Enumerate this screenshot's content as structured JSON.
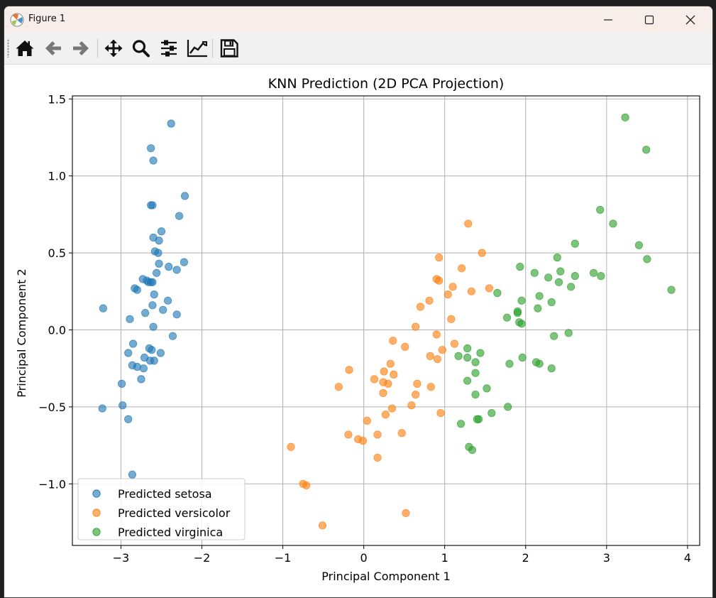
{
  "window": {
    "title": "Figure 1"
  },
  "toolbar": {
    "icons": [
      "home-icon",
      "back-arrow-icon",
      "forward-arrow-icon",
      "pan-move-icon",
      "zoom-magnifier-icon",
      "subplots-configure-icon",
      "edit-axis-lines-icon",
      "save-floppy-icon"
    ]
  },
  "colors": {
    "setosa": "#1f77b4",
    "versicolor": "#ff7f0e",
    "virginica": "#2ca02c"
  },
  "chart_data": {
    "type": "scatter",
    "title": "KNN Prediction (2D PCA Projection)",
    "xlabel": "Principal Component 1",
    "ylabel": "Principal Component 2",
    "xlim": [
      -3.6,
      4.15
    ],
    "ylim": [
      -1.4,
      1.52
    ],
    "xticks": [
      -3,
      -2,
      -1,
      0,
      1,
      2,
      3,
      4
    ],
    "xtick_labels": [
      "−3",
      "−2",
      "−1",
      "0",
      "1",
      "2",
      "3",
      "4"
    ],
    "yticks": [
      -1.0,
      -0.5,
      0.0,
      0.5,
      1.0,
      1.5
    ],
    "ytick_labels": [
      "−1.0",
      "−0.5",
      "0.0",
      "0.5",
      "1.0",
      "1.5"
    ],
    "grid": true,
    "legend_position": "lower-left",
    "series": [
      {
        "name": "Predicted setosa",
        "color": "#1f77b4",
        "points": [
          [
            -2.38,
            1.34
          ],
          [
            -2.63,
            1.18
          ],
          [
            -2.6,
            1.1
          ],
          [
            -2.21,
            0.87
          ],
          [
            -2.63,
            0.81
          ],
          [
            -2.61,
            0.81
          ],
          [
            -2.28,
            0.74
          ],
          [
            -2.5,
            0.64
          ],
          [
            -2.6,
            0.6
          ],
          [
            -2.53,
            0.58
          ],
          [
            -2.58,
            0.51
          ],
          [
            -2.54,
            0.5
          ],
          [
            -2.22,
            0.44
          ],
          [
            -2.53,
            0.43
          ],
          [
            -2.41,
            0.41
          ],
          [
            -2.31,
            0.39
          ],
          [
            -2.56,
            0.37
          ],
          [
            -2.73,
            0.33
          ],
          [
            -2.68,
            0.32
          ],
          [
            -2.63,
            0.31
          ],
          [
            -2.61,
            0.31
          ],
          [
            -2.66,
            0.31
          ],
          [
            -2.83,
            0.27
          ],
          [
            -2.8,
            0.26
          ],
          [
            -2.59,
            0.23
          ],
          [
            -2.42,
            0.19
          ],
          [
            -2.61,
            0.16
          ],
          [
            -2.48,
            0.13
          ],
          [
            -3.22,
            0.14
          ],
          [
            -2.31,
            0.1
          ],
          [
            -2.7,
            0.11
          ],
          [
            -2.89,
            0.07
          ],
          [
            -2.6,
            0.02
          ],
          [
            -2.36,
            -0.04
          ],
          [
            -2.85,
            -0.09
          ],
          [
            -2.65,
            -0.12
          ],
          [
            -2.62,
            -0.13
          ],
          [
            -2.91,
            -0.15
          ],
          [
            -2.51,
            -0.15
          ],
          [
            -2.71,
            -0.18
          ],
          [
            -2.64,
            -0.2
          ],
          [
            -2.59,
            -0.2
          ],
          [
            -2.86,
            -0.23
          ],
          [
            -2.8,
            -0.24
          ],
          [
            -2.72,
            -0.25
          ],
          [
            -2.75,
            -0.32
          ],
          [
            -2.99,
            -0.35
          ],
          [
            -2.98,
            -0.49
          ],
          [
            -3.23,
            -0.51
          ],
          [
            -2.91,
            -0.58
          ],
          [
            -2.86,
            -0.94
          ]
        ]
      },
      {
        "name": "Predicted versicolor",
        "color": "#ff7f0e",
        "points": [
          [
            1.29,
            0.69
          ],
          [
            1.46,
            0.5
          ],
          [
            0.93,
            0.47
          ],
          [
            1.21,
            0.4
          ],
          [
            0.9,
            0.33
          ],
          [
            0.93,
            0.32
          ],
          [
            1.1,
            0.28
          ],
          [
            1.55,
            0.27
          ],
          [
            1.33,
            0.25
          ],
          [
            1.04,
            0.23
          ],
          [
            0.81,
            0.19
          ],
          [
            0.7,
            0.15
          ],
          [
            1.08,
            0.07
          ],
          [
            0.64,
            0.02
          ],
          [
            0.9,
            -0.03
          ],
          [
            0.36,
            -0.07
          ],
          [
            1.12,
            -0.09
          ],
          [
            0.51,
            -0.11
          ],
          [
            0.97,
            -0.13
          ],
          [
            0.82,
            -0.17
          ],
          [
            0.91,
            -0.19
          ],
          [
            0.33,
            -0.22
          ],
          [
            -0.18,
            -0.26
          ],
          [
            0.25,
            -0.27
          ],
          [
            0.37,
            -0.29
          ],
          [
            0.13,
            -0.32
          ],
          [
            0.24,
            -0.34
          ],
          [
            0.3,
            -0.35
          ],
          [
            0.66,
            -0.35
          ],
          [
            0.83,
            -0.37
          ],
          [
            -0.31,
            -0.37
          ],
          [
            0.24,
            -0.41
          ],
          [
            0.64,
            -0.42
          ],
          [
            0.59,
            -0.49
          ],
          [
            0.35,
            -0.51
          ],
          [
            0.95,
            -0.54
          ],
          [
            0.27,
            -0.55
          ],
          [
            0.04,
            -0.59
          ],
          [
            -0.19,
            -0.68
          ],
          [
            0.17,
            -0.68
          ],
          [
            0.47,
            -0.67
          ],
          [
            -0.07,
            -0.71
          ],
          [
            -0.01,
            -0.72
          ],
          [
            -0.9,
            -0.76
          ],
          [
            0.17,
            -0.83
          ],
          [
            -0.75,
            -1.0
          ],
          [
            -0.71,
            -1.01
          ],
          [
            0.52,
            -1.19
          ],
          [
            -0.51,
            -1.27
          ]
        ]
      },
      {
        "name": "Predicted virginica",
        "color": "#2ca02c",
        "points": [
          [
            3.23,
            1.38
          ],
          [
            3.49,
            1.17
          ],
          [
            2.92,
            0.78
          ],
          [
            3.08,
            0.69
          ],
          [
            2.61,
            0.56
          ],
          [
            3.4,
            0.55
          ],
          [
            2.39,
            0.47
          ],
          [
            3.5,
            0.46
          ],
          [
            1.93,
            0.41
          ],
          [
            2.43,
            0.38
          ],
          [
            2.11,
            0.37
          ],
          [
            2.84,
            0.37
          ],
          [
            2.93,
            0.35
          ],
          [
            2.61,
            0.35
          ],
          [
            2.28,
            0.34
          ],
          [
            2.41,
            0.31
          ],
          [
            2.56,
            0.28
          ],
          [
            1.65,
            0.24
          ],
          [
            3.8,
            0.26
          ],
          [
            2.17,
            0.22
          ],
          [
            1.95,
            0.19
          ],
          [
            2.32,
            0.18
          ],
          [
            2.15,
            0.14
          ],
          [
            1.9,
            0.12
          ],
          [
            1.9,
            0.11
          ],
          [
            1.77,
            0.08
          ],
          [
            1.92,
            0.05
          ],
          [
            1.95,
            0.04
          ],
          [
            2.35,
            -0.04
          ],
          [
            2.53,
            -0.02
          ],
          [
            1.28,
            -0.12
          ],
          [
            1.44,
            -0.15
          ],
          [
            1.17,
            -0.17
          ],
          [
            1.28,
            -0.18
          ],
          [
            1.96,
            -0.18
          ],
          [
            2.13,
            -0.21
          ],
          [
            1.38,
            -0.21
          ],
          [
            2.17,
            -0.22
          ],
          [
            1.8,
            -0.22
          ],
          [
            2.32,
            -0.25
          ],
          [
            1.38,
            -0.28
          ],
          [
            1.28,
            -0.33
          ],
          [
            1.52,
            -0.38
          ],
          [
            1.38,
            -0.42
          ],
          [
            1.78,
            -0.5
          ],
          [
            1.58,
            -0.54
          ],
          [
            1.42,
            -0.58
          ],
          [
            1.4,
            -0.58
          ],
          [
            1.2,
            -0.61
          ],
          [
            1.3,
            -0.76
          ],
          [
            1.34,
            -0.78
          ]
        ]
      }
    ]
  }
}
